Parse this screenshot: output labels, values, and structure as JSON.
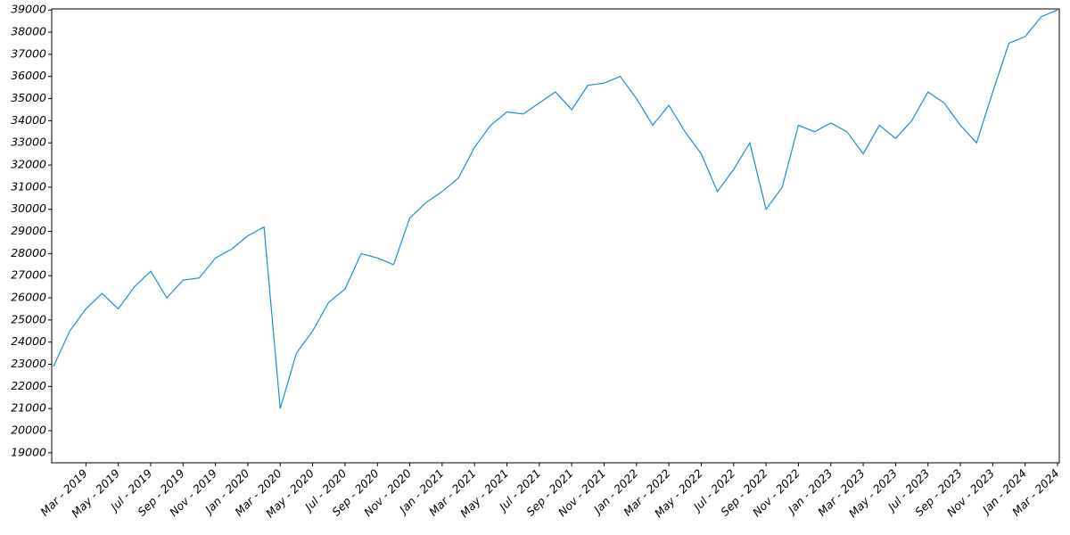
{
  "chart_data": {
    "type": "line",
    "color": "#1a8fd0",
    "grid": false,
    "x": [
      "2019-01",
      "2019-02",
      "2019-03",
      "2019-04",
      "2019-05",
      "2019-06",
      "2019-07",
      "2019-08",
      "2019-09",
      "2019-10",
      "2019-11",
      "2019-12",
      "2020-01",
      "2020-02",
      "2020-03",
      "2020-04",
      "2020-05",
      "2020-06",
      "2020-07",
      "2020-08",
      "2020-09",
      "2020-10",
      "2020-11",
      "2020-12",
      "2021-01",
      "2021-02",
      "2021-03",
      "2021-04",
      "2021-05",
      "2021-06",
      "2021-07",
      "2021-08",
      "2021-09",
      "2021-10",
      "2021-11",
      "2021-12",
      "2022-01",
      "2022-02",
      "2022-03",
      "2022-04",
      "2022-05",
      "2022-06",
      "2022-07",
      "2022-08",
      "2022-09",
      "2022-10",
      "2022-11",
      "2022-12",
      "2023-01",
      "2023-02",
      "2023-03",
      "2023-04",
      "2023-05",
      "2023-06",
      "2023-07",
      "2023-08",
      "2023-09",
      "2023-10",
      "2023-11",
      "2023-12",
      "2024-01",
      "2024-02",
      "2024-03"
    ],
    "values": [
      22900,
      24500,
      25500,
      26200,
      25500,
      26500,
      27200,
      26000,
      26800,
      26900,
      27800,
      28200,
      28800,
      29200,
      21000,
      23500,
      24500,
      25800,
      26400,
      28000,
      27800,
      27500,
      29600,
      30300,
      30800,
      31400,
      32800,
      33800,
      34400,
      34300,
      34800,
      35300,
      34500,
      35600,
      35700,
      36000,
      35000,
      33800,
      34700,
      33500,
      32500,
      30800,
      31800,
      33000,
      30000,
      31000,
      33800,
      33500,
      33900,
      33500,
      32500,
      33800,
      33200,
      34000,
      35300,
      34800,
      33800,
      33000,
      35300,
      37500,
      37800,
      38700,
      39000
    ],
    "xlim": [
      "2019-01",
      "2024-03"
    ],
    "xticks": [
      {
        "value": "2019-03",
        "label": "Mar - 2019"
      },
      {
        "value": "2019-05",
        "label": "May - 2019"
      },
      {
        "value": "2019-07",
        "label": "Jul - 2019"
      },
      {
        "value": "2019-09",
        "label": "Sep - 2019"
      },
      {
        "value": "2019-11",
        "label": "Nov - 2019"
      },
      {
        "value": "2020-01",
        "label": "Jan - 2020"
      },
      {
        "value": "2020-03",
        "label": "Mar - 2020"
      },
      {
        "value": "2020-05",
        "label": "May - 2020"
      },
      {
        "value": "2020-07",
        "label": "Jul - 2020"
      },
      {
        "value": "2020-09",
        "label": "Sep - 2020"
      },
      {
        "value": "2020-11",
        "label": "Nov - 2020"
      },
      {
        "value": "2021-01",
        "label": "Jan - 2021"
      },
      {
        "value": "2021-03",
        "label": "Mar - 2021"
      },
      {
        "value": "2021-05",
        "label": "May - 2021"
      },
      {
        "value": "2021-07",
        "label": "Jul - 2021"
      },
      {
        "value": "2021-09",
        "label": "Sep - 2021"
      },
      {
        "value": "2021-11",
        "label": "Nov - 2021"
      },
      {
        "value": "2022-01",
        "label": "Jan - 2022"
      },
      {
        "value": "2022-03",
        "label": "Mar - 2022"
      },
      {
        "value": "2022-05",
        "label": "May - 2022"
      },
      {
        "value": "2022-07",
        "label": "Jul - 2022"
      },
      {
        "value": "2022-09",
        "label": "Sep - 2022"
      },
      {
        "value": "2022-11",
        "label": "Nov - 2022"
      },
      {
        "value": "2023-01",
        "label": "Jan - 2023"
      },
      {
        "value": "2023-03",
        "label": "Mar - 2023"
      },
      {
        "value": "2023-05",
        "label": "May - 2023"
      },
      {
        "value": "2023-07",
        "label": "Jul - 2023"
      },
      {
        "value": "2023-09",
        "label": "Sep - 2023"
      },
      {
        "value": "2023-11",
        "label": "Nov - 2023"
      },
      {
        "value": "2024-01",
        "label": "Jan - 2024"
      },
      {
        "value": "2024-03",
        "label": "Mar - 2024"
      }
    ],
    "ylim": [
      18550,
      39050
    ],
    "yticks": [
      19000,
      20000,
      21000,
      22000,
      23000,
      24000,
      25000,
      26000,
      27000,
      28000,
      29000,
      30000,
      31000,
      32000,
      33000,
      34000,
      35000,
      36000,
      37000,
      38000,
      39000
    ]
  }
}
